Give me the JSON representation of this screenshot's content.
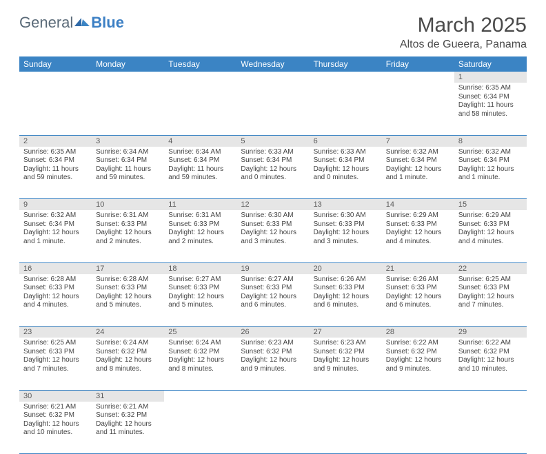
{
  "logo": {
    "text1": "General",
    "text2": "Blue"
  },
  "title": "March 2025",
  "location": "Altos de Gueera, Panama",
  "colors": {
    "header_bg": "#3b84c4",
    "header_text": "#ffffff",
    "daynum_bg": "#e6e6e6",
    "border": "#3b84c4",
    "logo_gray": "#5a6a78",
    "logo_blue": "#3b7fc4"
  },
  "weekdays": [
    "Sunday",
    "Monday",
    "Tuesday",
    "Wednesday",
    "Thursday",
    "Friday",
    "Saturday"
  ],
  "weeks": [
    {
      "nums": [
        "",
        "",
        "",
        "",
        "",
        "",
        "1"
      ],
      "cells": [
        null,
        null,
        null,
        null,
        null,
        null,
        {
          "sunrise": "Sunrise: 6:35 AM",
          "sunset": "Sunset: 6:34 PM",
          "daylight": "Daylight: 11 hours and 58 minutes."
        }
      ]
    },
    {
      "nums": [
        "2",
        "3",
        "4",
        "5",
        "6",
        "7",
        "8"
      ],
      "cells": [
        {
          "sunrise": "Sunrise: 6:35 AM",
          "sunset": "Sunset: 6:34 PM",
          "daylight": "Daylight: 11 hours and 59 minutes."
        },
        {
          "sunrise": "Sunrise: 6:34 AM",
          "sunset": "Sunset: 6:34 PM",
          "daylight": "Daylight: 11 hours and 59 minutes."
        },
        {
          "sunrise": "Sunrise: 6:34 AM",
          "sunset": "Sunset: 6:34 PM",
          "daylight": "Daylight: 11 hours and 59 minutes."
        },
        {
          "sunrise": "Sunrise: 6:33 AM",
          "sunset": "Sunset: 6:34 PM",
          "daylight": "Daylight: 12 hours and 0 minutes."
        },
        {
          "sunrise": "Sunrise: 6:33 AM",
          "sunset": "Sunset: 6:34 PM",
          "daylight": "Daylight: 12 hours and 0 minutes."
        },
        {
          "sunrise": "Sunrise: 6:32 AM",
          "sunset": "Sunset: 6:34 PM",
          "daylight": "Daylight: 12 hours and 1 minute."
        },
        {
          "sunrise": "Sunrise: 6:32 AM",
          "sunset": "Sunset: 6:34 PM",
          "daylight": "Daylight: 12 hours and 1 minute."
        }
      ]
    },
    {
      "nums": [
        "9",
        "10",
        "11",
        "12",
        "13",
        "14",
        "15"
      ],
      "cells": [
        {
          "sunrise": "Sunrise: 6:32 AM",
          "sunset": "Sunset: 6:34 PM",
          "daylight": "Daylight: 12 hours and 1 minute."
        },
        {
          "sunrise": "Sunrise: 6:31 AM",
          "sunset": "Sunset: 6:33 PM",
          "daylight": "Daylight: 12 hours and 2 minutes."
        },
        {
          "sunrise": "Sunrise: 6:31 AM",
          "sunset": "Sunset: 6:33 PM",
          "daylight": "Daylight: 12 hours and 2 minutes."
        },
        {
          "sunrise": "Sunrise: 6:30 AM",
          "sunset": "Sunset: 6:33 PM",
          "daylight": "Daylight: 12 hours and 3 minutes."
        },
        {
          "sunrise": "Sunrise: 6:30 AM",
          "sunset": "Sunset: 6:33 PM",
          "daylight": "Daylight: 12 hours and 3 minutes."
        },
        {
          "sunrise": "Sunrise: 6:29 AM",
          "sunset": "Sunset: 6:33 PM",
          "daylight": "Daylight: 12 hours and 4 minutes."
        },
        {
          "sunrise": "Sunrise: 6:29 AM",
          "sunset": "Sunset: 6:33 PM",
          "daylight": "Daylight: 12 hours and 4 minutes."
        }
      ]
    },
    {
      "nums": [
        "16",
        "17",
        "18",
        "19",
        "20",
        "21",
        "22"
      ],
      "cells": [
        {
          "sunrise": "Sunrise: 6:28 AM",
          "sunset": "Sunset: 6:33 PM",
          "daylight": "Daylight: 12 hours and 4 minutes."
        },
        {
          "sunrise": "Sunrise: 6:28 AM",
          "sunset": "Sunset: 6:33 PM",
          "daylight": "Daylight: 12 hours and 5 minutes."
        },
        {
          "sunrise": "Sunrise: 6:27 AM",
          "sunset": "Sunset: 6:33 PM",
          "daylight": "Daylight: 12 hours and 5 minutes."
        },
        {
          "sunrise": "Sunrise: 6:27 AM",
          "sunset": "Sunset: 6:33 PM",
          "daylight": "Daylight: 12 hours and 6 minutes."
        },
        {
          "sunrise": "Sunrise: 6:26 AM",
          "sunset": "Sunset: 6:33 PM",
          "daylight": "Daylight: 12 hours and 6 minutes."
        },
        {
          "sunrise": "Sunrise: 6:26 AM",
          "sunset": "Sunset: 6:33 PM",
          "daylight": "Daylight: 12 hours and 6 minutes."
        },
        {
          "sunrise": "Sunrise: 6:25 AM",
          "sunset": "Sunset: 6:33 PM",
          "daylight": "Daylight: 12 hours and 7 minutes."
        }
      ]
    },
    {
      "nums": [
        "23",
        "24",
        "25",
        "26",
        "27",
        "28",
        "29"
      ],
      "cells": [
        {
          "sunrise": "Sunrise: 6:25 AM",
          "sunset": "Sunset: 6:33 PM",
          "daylight": "Daylight: 12 hours and 7 minutes."
        },
        {
          "sunrise": "Sunrise: 6:24 AM",
          "sunset": "Sunset: 6:32 PM",
          "daylight": "Daylight: 12 hours and 8 minutes."
        },
        {
          "sunrise": "Sunrise: 6:24 AM",
          "sunset": "Sunset: 6:32 PM",
          "daylight": "Daylight: 12 hours and 8 minutes."
        },
        {
          "sunrise": "Sunrise: 6:23 AM",
          "sunset": "Sunset: 6:32 PM",
          "daylight": "Daylight: 12 hours and 9 minutes."
        },
        {
          "sunrise": "Sunrise: 6:23 AM",
          "sunset": "Sunset: 6:32 PM",
          "daylight": "Daylight: 12 hours and 9 minutes."
        },
        {
          "sunrise": "Sunrise: 6:22 AM",
          "sunset": "Sunset: 6:32 PM",
          "daylight": "Daylight: 12 hours and 9 minutes."
        },
        {
          "sunrise": "Sunrise: 6:22 AM",
          "sunset": "Sunset: 6:32 PM",
          "daylight": "Daylight: 12 hours and 10 minutes."
        }
      ]
    },
    {
      "nums": [
        "30",
        "31",
        "",
        "",
        "",
        "",
        ""
      ],
      "cells": [
        {
          "sunrise": "Sunrise: 6:21 AM",
          "sunset": "Sunset: 6:32 PM",
          "daylight": "Daylight: 12 hours and 10 minutes."
        },
        {
          "sunrise": "Sunrise: 6:21 AM",
          "sunset": "Sunset: 6:32 PM",
          "daylight": "Daylight: 12 hours and 11 minutes."
        },
        null,
        null,
        null,
        null,
        null
      ]
    }
  ]
}
